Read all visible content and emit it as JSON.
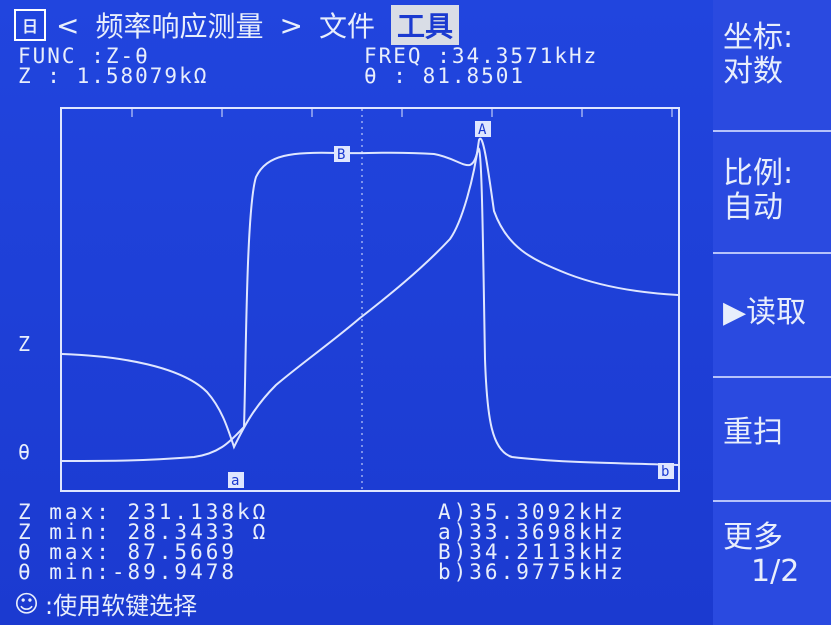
{
  "menu": {
    "logo": "日",
    "prev": "<",
    "title": "频率响应测量",
    "next": ">",
    "file": "文件",
    "tools": "工具"
  },
  "status": {
    "func_label": "FUNC :Z-θ",
    "freq_label": "FREQ :34.3571kHz",
    "z_label": "Z : 1.58079kΩ",
    "theta_label": "θ : 81.8501"
  },
  "axis": {
    "z": "Z",
    "theta": "θ"
  },
  "markers": {
    "A": "A",
    "a": "a",
    "B": "B",
    "b": "b"
  },
  "stats": {
    "z_max": "Z max: 231.138kΩ",
    "z_min": "Z min: 28.3433 Ω",
    "theta_max": "θ max: 87.5669",
    "theta_min": "θ min:-89.9478",
    "A": "A)35.3092kHz",
    "a": "a)33.3698kHz",
    "B": "B)34.2113kHz",
    "b": "b)36.9775kHz"
  },
  "footer": {
    "icon": "☺",
    "text": ":使用软键选择"
  },
  "softkeys": [
    {
      "line1": "坐标:",
      "line2": "对数"
    },
    {
      "line1": "比例:",
      "line2": "自动"
    },
    {
      "line1": "▶读取",
      "line2": ""
    },
    {
      "line1": "重扫",
      "line2": ""
    },
    {
      "line1": "更多",
      "line2": "1/2"
    }
  ]
}
